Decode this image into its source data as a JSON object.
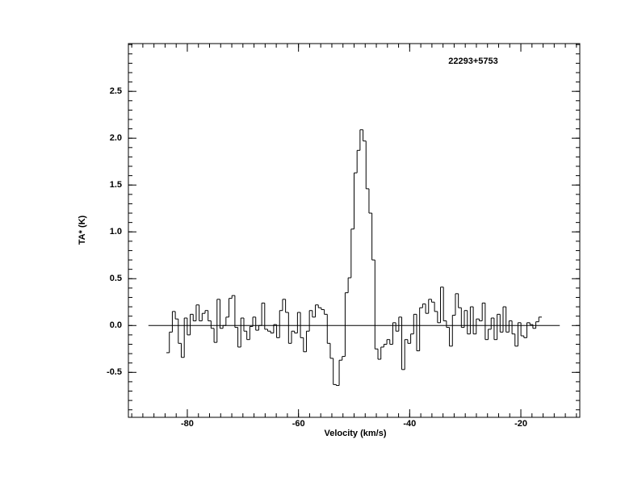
{
  "chart_data": {
    "type": "line",
    "step": true,
    "color": "#000000",
    "annotation": "22293+5753",
    "xlabel": "Velocity (km/s)",
    "ylabel": "TA* (K)",
    "xlim": [
      -90.6,
      -9.4
    ],
    "xticks": [
      -80,
      -60,
      -40,
      -20
    ],
    "ylim": [
      -0.98,
      3.01
    ],
    "yticks": [
      -0.5,
      {
        "value": 0,
        "label": "0.0"
      },
      0.5,
      {
        "value": 1,
        "label": "1.0"
      },
      1.5,
      {
        "value": 2,
        "label": "2.0"
      },
      2.5
    ],
    "baseline": {
      "y": 0,
      "x": [
        -87.0,
        -13.0
      ]
    },
    "x": [
      -83.5,
      -82.96,
      -82.43,
      -81.89,
      -81.36,
      -80.82,
      -80.28,
      -79.75,
      -79.21,
      -78.68,
      -78.14,
      -77.6,
      -77.07,
      -76.53,
      -76.0,
      -75.46,
      -74.92,
      -74.39,
      -73.85,
      -73.32,
      -72.78,
      -72.24,
      -71.71,
      -71.17,
      -70.64,
      -70.1,
      -69.56,
      -69.03,
      -68.49,
      -67.96,
      -67.42,
      -66.88,
      -66.35,
      -65.81,
      -65.28,
      -64.74,
      -64.2,
      -63.67,
      -63.13,
      -62.6,
      -62.06,
      -61.52,
      -60.99,
      -60.45,
      -59.92,
      -59.38,
      -58.84,
      -58.31,
      -57.77,
      -57.24,
      -56.7,
      -56.16,
      -55.63,
      -55.09,
      -54.56,
      -54.02,
      -53.48,
      -52.95,
      -52.41,
      -51.88,
      -51.34,
      -50.8,
      -50.27,
      -49.73,
      -49.2,
      -48.66,
      -48.12,
      -47.59,
      -47.05,
      -46.52,
      -45.98,
      -45.44,
      -44.91,
      -44.37,
      -43.84,
      -43.3,
      -42.76,
      -42.23,
      -41.69,
      -41.16,
      -40.62,
      -40.08,
      -39.55,
      -39.01,
      -38.48,
      -37.94,
      -37.4,
      -36.87,
      -36.33,
      -35.8,
      -35.26,
      -34.72,
      -34.19,
      -33.65,
      -33.12,
      -32.58,
      -32.04,
      -31.51,
      -30.97,
      -30.44,
      -29.9,
      -29.36,
      -28.83,
      -28.29,
      -27.76,
      -27.22,
      -26.68,
      -26.15,
      -25.61,
      -25.08,
      -24.54,
      -24.0,
      -23.47,
      -22.93,
      -22.4,
      -21.86,
      -21.32,
      -20.79,
      -20.25,
      -19.72,
      -19.18,
      -18.64,
      -18.11,
      -17.57,
      -17.04,
      -16.5
    ],
    "values": [
      -0.29,
      -0.07,
      0.15,
      0.07,
      -0.19,
      -0.34,
      0.08,
      -0.1,
      0.12,
      0.05,
      0.22,
      0.05,
      0.13,
      0.16,
      0.05,
      -0.03,
      -0.18,
      0.28,
      -0.03,
      0.0,
      0.09,
      0.29,
      0.32,
      -0.02,
      -0.23,
      0.08,
      -0.06,
      -0.15,
      -0.01,
      0.09,
      -0.05,
      0.0,
      0.24,
      -0.04,
      -0.06,
      -0.08,
      0.01,
      -0.13,
      0.16,
      0.28,
      0.14,
      -0.19,
      -0.06,
      -0.08,
      0.14,
      -0.13,
      -0.28,
      -0.06,
      0.16,
      0.09,
      0.22,
      0.19,
      0.17,
      0.12,
      -0.19,
      -0.35,
      -0.63,
      -0.64,
      -0.37,
      -0.33,
      0.35,
      0.51,
      1.03,
      1.63,
      1.87,
      2.09,
      1.97,
      1.46,
      1.2,
      0.7,
      -0.25,
      -0.36,
      -0.23,
      -0.2,
      -0.15,
      -0.2,
      0.03,
      -0.06,
      0.09,
      -0.47,
      -0.15,
      -0.19,
      -0.09,
      0.12,
      -0.27,
      0.19,
      0.23,
      0.13,
      0.28,
      0.25,
      0.15,
      0.03,
      0.41,
      0.05,
      -0.02,
      -0.22,
      0.11,
      0.34,
      0.19,
      -0.02,
      0.16,
      -0.09,
      0.2,
      -0.09,
      0.07,
      0.05,
      0.24,
      -0.15,
      -0.04,
      0.08,
      -0.15,
      0.12,
      -0.07,
      0.2,
      -0.07,
      0.05,
      -0.09,
      -0.22,
      0.03,
      -0.11,
      -0.13,
      0.03,
      0.01,
      -0.03,
      0.04,
      0.09
    ]
  }
}
